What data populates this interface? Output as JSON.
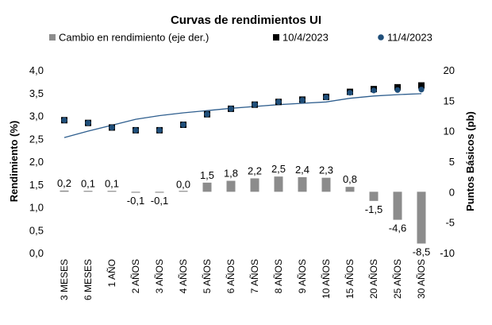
{
  "chart_data": {
    "type": "bar",
    "title": "Curvas de rendimientos UI",
    "ylabel_left": "Rendimiento (%)",
    "ylabel_right": "Puntos Básicos (pb)",
    "ylim_left": [
      0,
      4
    ],
    "ylim_right": [
      -10,
      20
    ],
    "yticks_left": [
      "0,0",
      "0,5",
      "1,0",
      "1,5",
      "2,0",
      "2,5",
      "3,0",
      "3,5",
      "4,0"
    ],
    "yticks_right": [
      "-10",
      "-5",
      "0",
      "5",
      "10",
      "15",
      "20"
    ],
    "categories": [
      "3 MESES",
      "6 MESES",
      "1 AÑO",
      "2 AÑOS",
      "3 AÑOS",
      "4 AÑOS",
      "5 AÑOS",
      "6 AÑOS",
      "7 AÑOS",
      "8 AÑOS",
      "9 AÑOS",
      "10 AÑOS",
      "15 AÑOS",
      "20 AÑOS",
      "25 AÑOS",
      "30 AÑOS"
    ],
    "grid": false,
    "legend_position": "top",
    "series": [
      {
        "name": "Cambio en rendimiento (eje der.)",
        "kind": "bar",
        "axis": "right",
        "color": "#8c8c8c",
        "values": [
          0.2,
          0.1,
          0.1,
          -0.1,
          -0.1,
          0.0,
          1.5,
          1.8,
          2.2,
          2.5,
          2.4,
          2.3,
          0.8,
          -1.5,
          -4.6,
          -8.5
        ],
        "labels": [
          "0,2",
          "0,1",
          "0,1",
          "-0,1",
          "-0,1",
          "0,0",
          "1,5",
          "1,8",
          "2,2",
          "2,5",
          "2,4",
          "2,3",
          "0,8",
          "-1,5",
          "-4,6",
          "-8,5"
        ]
      },
      {
        "name": "10/4/2023",
        "kind": "marker-square",
        "axis": "left",
        "color": "#000000",
        "values": [
          2.9,
          2.84,
          2.74,
          2.68,
          2.68,
          2.8,
          3.03,
          3.15,
          3.24,
          3.3,
          3.35,
          3.41,
          3.52,
          3.58,
          3.62,
          3.66
        ]
      },
      {
        "name": "11/4/2023",
        "kind": "marker-circle",
        "axis": "left",
        "color": "#1f4e79",
        "values": [
          2.9,
          2.84,
          2.74,
          2.68,
          2.68,
          2.8,
          3.03,
          3.15,
          3.24,
          3.3,
          3.34,
          3.4,
          3.5,
          3.55,
          3.56,
          3.57
        ]
      }
    ],
    "fit_curve": {
      "color": "#2e5e8e",
      "values": [
        2.52,
        2.66,
        2.79,
        2.92,
        3.0,
        3.06,
        3.11,
        3.16,
        3.2,
        3.24,
        3.27,
        3.3,
        3.38,
        3.43,
        3.46,
        3.48
      ]
    }
  }
}
